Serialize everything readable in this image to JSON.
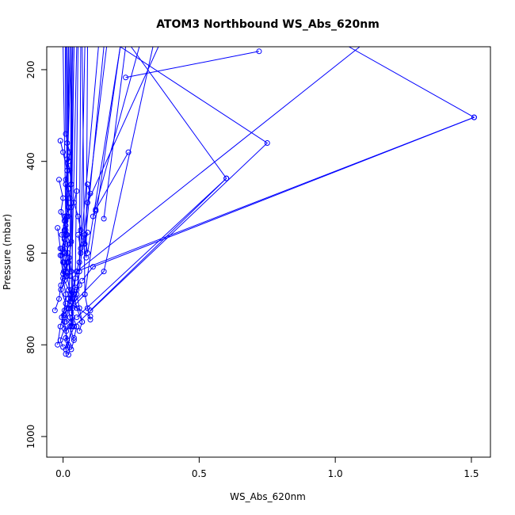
{
  "chart_data": {
    "type": "line",
    "title": "ATOM3 Northbound WS_Abs_620nm",
    "xlabel": "WS_Abs_620nm",
    "ylabel": "Pressure (mbar)",
    "xlim": [
      -0.06,
      1.57
    ],
    "ylim": [
      1045,
      150
    ],
    "y_reversed": true,
    "x_ticks": [
      0,
      0.5,
      1,
      1.5
    ],
    "x_tick_labels": [
      "0.0",
      "0.5",
      "1.0",
      "1.5"
    ],
    "y_ticks": [
      200,
      400,
      600,
      800,
      1000
    ],
    "y_tick_labels": [
      "200",
      "400",
      "600",
      "800",
      "1000"
    ],
    "color": "#0000ff",
    "marker": "open-circle",
    "grid": false,
    "series": [
      {
        "x": [
          0.02,
          0.025,
          0.01,
          0.012,
          0.03,
          0.003,
          0.015,
          0.035,
          0.02,
          0.005,
          0.01,
          0.02,
          0.008,
          0.025,
          0.015,
          0.01,
          0.005,
          0.03,
          0.025,
          0.02,
          0.01,
          0.015,
          0.02,
          0.025,
          0.015,
          0.01,
          0.008
        ],
        "y": [
          822,
          805,
          785,
          770,
          750,
          735,
          720,
          700,
          680,
          660,
          640,
          620,
          600,
          580,
          560,
          540,
          520,
          500,
          480,
          460,
          440,
          420,
          400,
          380,
          360,
          340,
          150
        ]
      },
      {
        "x": [
          0.0,
          -0.01,
          0.005,
          -0.005,
          0.01,
          -0.008,
          0.012,
          0.005,
          -0.005,
          0.008,
          0.01,
          0.0
        ],
        "y": [
          805,
          790,
          765,
          740,
          710,
          680,
          650,
          620,
          590,
          560,
          530,
          150
        ]
      },
      {
        "x": [
          -0.02,
          -0.01,
          0.005,
          0.01,
          0.0,
          0.015,
          0.008,
          -0.005,
          0.01,
          0.025
        ],
        "y": [
          800,
          760,
          725,
          690,
          655,
          620,
          590,
          560,
          520,
          150
        ]
      },
      {
        "x": [
          0.03,
          0.04,
          0.025,
          0.035,
          0.028,
          0.045,
          0.03,
          0.022,
          0.03,
          0.04
        ],
        "y": [
          810,
          790,
          760,
          740,
          705,
          675,
          640,
          610,
          575,
          150
        ]
      },
      {
        "x": [
          -0.03,
          -0.015,
          -0.008,
          0.003,
          -0.005,
          0.01,
          0.005,
          0.015,
          0.02
        ],
        "y": [
          725,
          700,
          670,
          640,
          605,
          580,
          550,
          520,
          150
        ]
      },
      {
        "x": [
          -0.02,
          -0.01,
          0.0,
          0.015,
          0.03,
          0.05
        ],
        "y": [
          545,
          590,
          620,
          650,
          700,
          150
        ]
      },
      {
        "x": [
          0.04,
          0.05,
          0.03,
          0.04,
          0.06,
          0.05,
          0.065,
          0.08
        ],
        "y": [
          785,
          760,
          730,
          700,
          670,
          640,
          600,
          150
        ]
      },
      {
        "x": [
          0.02,
          0.03,
          0.035,
          0.05,
          0.06,
          0.065
        ],
        "y": [
          800,
          760,
          720,
          680,
          640,
          150
        ]
      },
      {
        "x": [
          0.01,
          0.015,
          0.005,
          0.02,
          0.025,
          0.03
        ],
        "y": [
          820,
          790,
          750,
          700,
          650,
          150
        ]
      },
      {
        "x": [
          0.06,
          0.07,
          0.05,
          0.04,
          0.045,
          0.055
        ],
        "y": [
          770,
          750,
          720,
          690,
          655,
          150
        ]
      },
      {
        "x": [
          -0.015,
          0.0,
          -0.008,
          0.01,
          0.005,
          0.015,
          0.012
        ],
        "y": [
          440,
          480,
          510,
          550,
          600,
          640,
          150
        ]
      },
      {
        "x": [
          0.0,
          -0.01,
          0.005,
          0.02,
          0.015
        ],
        "y": [
          645,
          605,
          570,
          520,
          150
        ]
      },
      {
        "x": [
          0.01,
          0.02,
          0.005,
          0.012,
          0.018,
          0.025,
          0.035
        ],
        "y": [
          450,
          500,
          530,
          560,
          600,
          650,
          150
        ]
      },
      {
        "x": [
          0.05,
          0.04,
          0.055,
          0.065,
          0.075,
          0.085,
          0.09
        ],
        "y": [
          465,
          490,
          520,
          550,
          580,
          610,
          150
        ]
      },
      {
        "x": [
          0.03,
          0.02,
          0.025,
          0.035,
          0.03
        ],
        "y": [
          680,
          720,
          740,
          760,
          150
        ]
      },
      {
        "x": [
          0.1,
          0.09,
          0.08,
          0.07
        ],
        "y": [
          745,
          720,
          690,
          150
        ]
      },
      {
        "x": [
          0.015,
          0.025,
          0.03,
          0.04
        ],
        "y": [
          395,
          420,
          450,
          150
        ]
      },
      {
        "x": [
          -0.01,
          0.0,
          0.015,
          0.03
        ],
        "y": [
          355,
          380,
          420,
          150
        ]
      },
      {
        "x": [
          0.055,
          0.065,
          0.06,
          0.13
        ],
        "y": [
          560,
          590,
          620,
          150
        ]
      },
      {
        "x": [
          0.15
        ],
        "y": [
          525
        ],
        "x2": [
          0.23
        ],
        "y2": [
          150
        ]
      },
      {
        "x": [
          0.09,
          0.08,
          0.15
        ],
        "y": [
          555,
          580,
          150
        ]
      },
      {
        "x": [
          0.12,
          0.11,
          0.28
        ],
        "y": [
          508,
          520,
          150
        ]
      },
      {
        "x": [
          0.09,
          0.1,
          0.09,
          0.35
        ],
        "y": [
          450,
          470,
          490,
          150
        ]
      },
      {
        "x": [
          0.08,
          0.09,
          0.21
        ],
        "y": [
          560,
          600,
          150
        ]
      },
      {
        "x": [
          0.07,
          0.06,
          0.05,
          0.16
        ],
        "y": [
          750,
          720,
          690,
          150
        ]
      },
      {
        "x": [
          0.1,
          0.04,
          0.08,
          0.21
        ],
        "y": [
          738,
          715,
          690,
          150
        ]
      },
      {
        "x": [
          0.01,
          0.02,
          0.15,
          0.33
        ],
        "y": [
          750,
          720,
          640,
          150
        ]
      },
      {
        "x": [
          0.05,
          0.6,
          0.25
        ],
        "y": [
          740,
          437,
          150
        ]
      },
      {
        "x": [
          0.23,
          0.72
        ],
        "y": [
          217,
          160
        ]
      },
      {
        "x": [
          0.01,
          0.04,
          0.75,
          0.21
        ],
        "y": [
          810,
          760,
          360,
          150
        ]
      },
      {
        "x": [
          0.03,
          0.05,
          1.51,
          1.05
        ],
        "y": [
          690,
          640,
          304,
          150
        ]
      },
      {
        "x": [
          0.07,
          0.11,
          1.51
        ],
        "y": [
          660,
          630,
          304
        ]
      },
      {
        "x": [
          0.1,
          0.6
        ],
        "y": [
          725,
          437
        ]
      },
      {
        "x": [
          0.12,
          0.24
        ],
        "y": [
          505,
          380
        ]
      },
      {
        "x": [
          0.05,
          1.09
        ],
        "y": [
          640,
          150
        ]
      }
    ]
  }
}
